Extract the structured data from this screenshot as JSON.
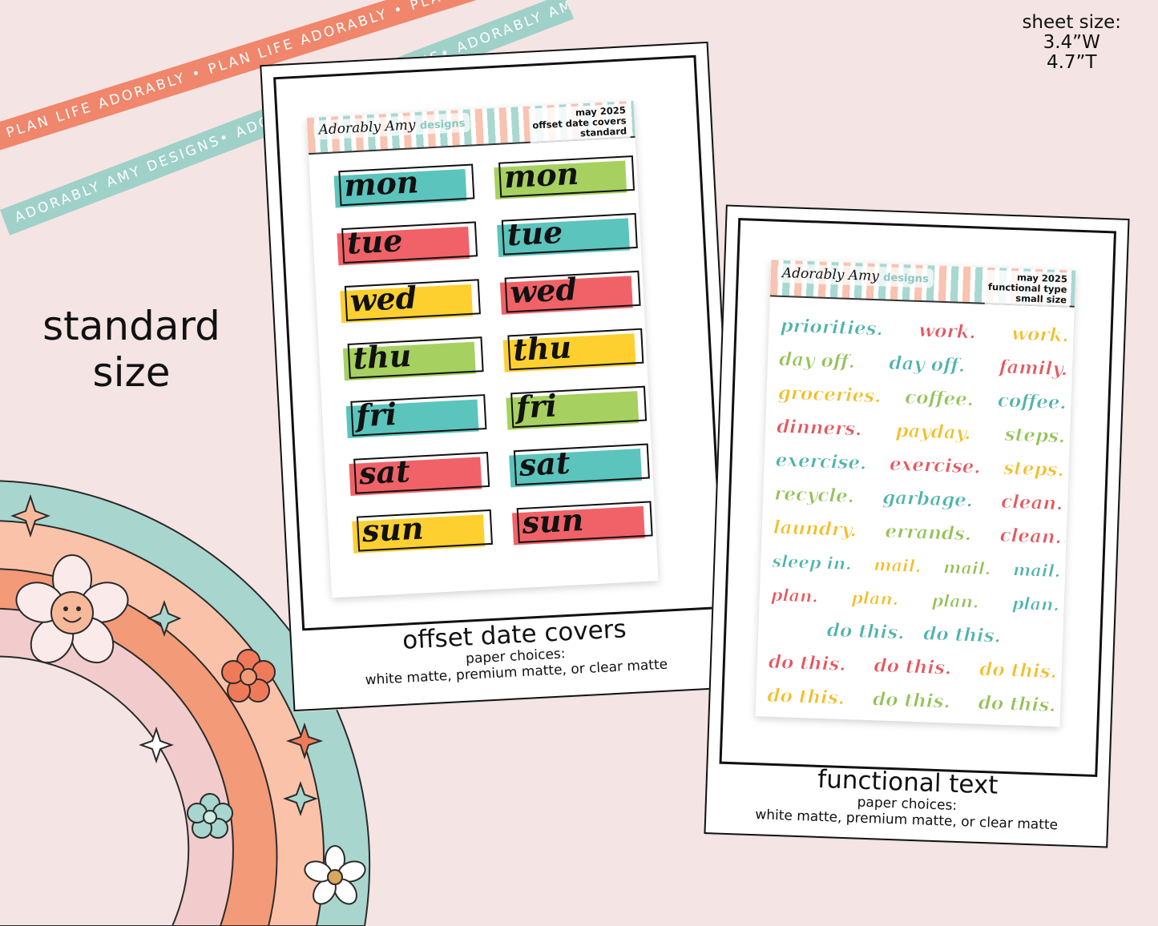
{
  "ribbons": {
    "orange_text": "PLAN LIFE ADORABLY • PLAN LIFE ADORABLY • PLAN LIFE ADORABLY •",
    "teal_text": "ADORABLY AMY DESIGNS• ADORABLY AMY DESIGNS• ADORABLY AMY DESIGNS•"
  },
  "sheet_size": {
    "line1": "sheet size:",
    "line2": "3.4”W",
    "line3": "4.7”T"
  },
  "standard_size": {
    "line1": "standard",
    "line2": "size"
  },
  "left_sheet": {
    "brand": "Adorably Amy",
    "brand_sub": "designs",
    "meta_line1": "may 2025",
    "meta_line2": "offset date covers",
    "meta_line3": "standard",
    "rows": [
      [
        {
          "label": "mon",
          "color": "#5bc4bd"
        },
        {
          "label": "mon",
          "color": "#a6d160"
        }
      ],
      [
        {
          "label": "tue",
          "color": "#f06268"
        },
        {
          "label": "tue",
          "color": "#5bc4bd"
        }
      ],
      [
        {
          "label": "wed",
          "color": "#fdd030"
        },
        {
          "label": "wed",
          "color": "#f06268"
        }
      ],
      [
        {
          "label": "thu",
          "color": "#a6d160"
        },
        {
          "label": "thu",
          "color": "#fdd030"
        }
      ],
      [
        {
          "label": "fri",
          "color": "#5bc4bd"
        },
        {
          "label": "fri",
          "color": "#a6d160"
        }
      ],
      [
        {
          "label": "sat",
          "color": "#f06268"
        },
        {
          "label": "sat",
          "color": "#5bc4bd"
        }
      ],
      [
        {
          "label": "sun",
          "color": "#fdd030"
        },
        {
          "label": "sun",
          "color": "#f06268"
        }
      ]
    ],
    "caption_title": "offset date covers",
    "caption_line1": "paper choices:",
    "caption_line2": "white matte, premium matte, or clear matte"
  },
  "right_sheet": {
    "brand": "Adorably Amy",
    "brand_sub": "designs",
    "meta_line1": "may 2025",
    "meta_line2": "functional type",
    "meta_line3": "small size",
    "rows": [
      [
        {
          "text": "priorities.",
          "color": "#4fb3ad"
        },
        {
          "text": "work.",
          "color": "#e8565e"
        },
        {
          "text": "work.",
          "color": "#f2bf2a"
        }
      ],
      [
        {
          "text": "day off.",
          "color": "#94c257"
        },
        {
          "text": "day off.",
          "color": "#4fb3ad"
        },
        {
          "text": "family.",
          "color": "#e8565e"
        }
      ],
      [
        {
          "text": "groceries.",
          "color": "#f2bf2a"
        },
        {
          "text": "coffee.",
          "color": "#94c257"
        },
        {
          "text": "coffee.",
          "color": "#4fb3ad"
        }
      ],
      [
        {
          "text": "dinners.",
          "color": "#e8565e"
        },
        {
          "text": "payday.",
          "color": "#f2bf2a"
        },
        {
          "text": "steps.",
          "color": "#94c257"
        }
      ],
      [
        {
          "text": "exercise.",
          "color": "#4fb3ad"
        },
        {
          "text": "exercise.",
          "color": "#e8565e"
        },
        {
          "text": "steps.",
          "color": "#f2bf2a"
        }
      ],
      [
        {
          "text": "recycle.",
          "color": "#94c257"
        },
        {
          "text": "garbage.",
          "color": "#4fb3ad"
        },
        {
          "text": "clean.",
          "color": "#e8565e"
        }
      ],
      [
        {
          "text": "laundry.",
          "color": "#f2bf2a"
        },
        {
          "text": "errands.",
          "color": "#94c257"
        },
        {
          "text": "clean.",
          "color": "#e8565e"
        }
      ],
      [
        {
          "text": "sleep in.",
          "color": "#4fb3ad"
        },
        {
          "text": "mail.",
          "color": "#f2bf2a"
        },
        {
          "text": "mail.",
          "color": "#94c257"
        },
        {
          "text": "mail.",
          "color": "#4fb3ad"
        }
      ],
      [
        {
          "text": "plan.",
          "color": "#e8565e"
        },
        {
          "text": "plan.",
          "color": "#f2bf2a"
        },
        {
          "text": "plan.",
          "color": "#94c257"
        },
        {
          "text": "plan.",
          "color": "#4fb3ad"
        }
      ],
      [
        {
          "text": "do this.",
          "color": "#4fb3ad"
        },
        {
          "text": "do this.",
          "color": "#4fb3ad"
        }
      ],
      [
        {
          "text": "do this.",
          "color": "#e8565e"
        },
        {
          "text": "do this.",
          "color": "#e8565e"
        },
        {
          "text": "do this.",
          "color": "#f2bf2a"
        }
      ],
      [
        {
          "text": "do this.",
          "color": "#f2bf2a"
        },
        {
          "text": "do this.",
          "color": "#94c257"
        },
        {
          "text": "do this.",
          "color": "#94c257"
        }
      ]
    ],
    "caption_title": "functional text",
    "caption_line1": "paper choices:",
    "caption_line2": "white matte, premium matte, or clear matte"
  },
  "colors": {
    "background": "#f5e4e4",
    "ribbon_orange": "#f0866b",
    "ribbon_teal": "#9fd1c8",
    "rainbow_teal": "#a8d6cf",
    "rainbow_peach": "#fbc2aa",
    "rainbow_orange": "#f39a78",
    "rainbow_pink": "#f2cccc"
  }
}
